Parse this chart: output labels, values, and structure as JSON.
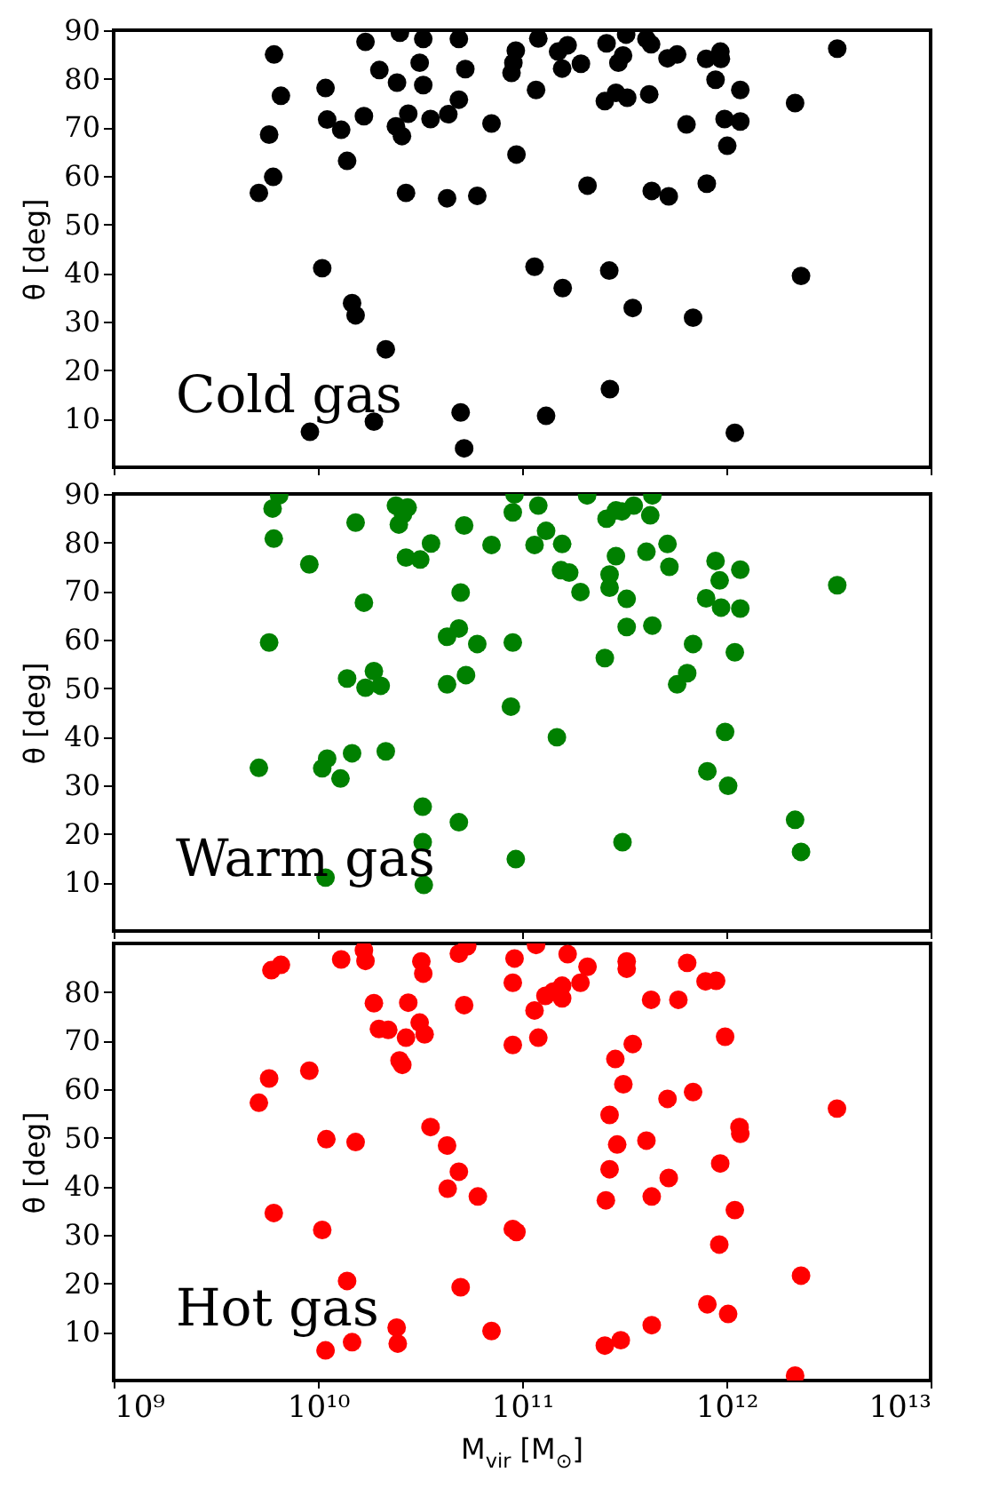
{
  "chart_data": [
    {
      "type": "scatter",
      "ylabel": "θ [deg]",
      "annotations": [
        "Cold gas"
      ],
      "log": "x",
      "marker": "circle",
      "tick_labels": "y",
      "xlim": [
        1000000000.0,
        10000000000000.0
      ],
      "ylim": [
        0,
        90
      ],
      "xticks": [
        {
          "value": 1000000000.0,
          "label": null
        },
        {
          "value": 10000000000.0,
          "label": null
        },
        {
          "value": 100000000000.0,
          "label": null
        },
        {
          "value": 1000000000000.0,
          "label": null
        },
        {
          "value": 10000000000000.0,
          "label": null
        }
      ],
      "yticks": [
        10,
        20,
        30,
        40,
        50,
        60,
        70,
        80,
        90
      ],
      "series": [
        {
          "color": "#000000",
          "x": [
            6100000000.0,
            17100000000.0,
            25200000000.0,
            32800000000.0,
            49000000000.0,
            93100000000.0,
            90600000000.0,
            20000000000.0,
            31500000000.0,
            52700000000.0,
            88700000000.0,
            10900000000.0,
            24400000000.0,
            32800000000.0,
            6590000000.0,
            49000000000.0,
            16800000000.0,
            11100000000.0,
            13000000000.0,
            24100000000.0,
            27700000000.0,
            25800000000.0,
            35600000000.0,
            43500000000.0,
            70800000000.0,
            5770000000.0,
            13900000000.0,
            93800000000.0,
            6040000000.0,
            5140000000.0,
            27000000000.0,
            42900000000.0,
            60300000000.0,
            10500000000.0,
            14700000000.0,
            15300000000.0,
            21500000000.0,
            50000000000.0,
            18800000000.0,
            9140000000.0,
            52000000000.0,
            120000000000.0,
            150000000000.0,
            167000000000.0,
            157000000000.0,
            194000000000.0,
            117000000000.0,
            259000000000.0,
            323000000000.0,
            406000000000.0,
            428000000000.0,
            312000000000.0,
            296000000000.0,
            515000000000.0,
            574000000000.0,
            796000000000.0,
            935000000000.0,
            940000000000.0,
            885000000000.0,
            1170000000000.0,
            254000000000.0,
            288000000000.0,
            327000000000.0,
            419000000000.0,
            2170000000000.0,
            3490000000000.0,
            638000000000.0,
            980000000000.0,
            1170000000000.0,
            1010000000000.0,
            209000000000.0,
            431000000000.0,
            522000000000.0,
            802000000000.0,
            115000000000.0,
            158000000000.0,
            267000000000.0,
            348000000000.0,
            687000000000.0,
            2320000000000.0,
            269000000000.0,
            131000000000.0,
            1100000000000.0
          ],
          "values": [
            85.0,
            87.6,
            89.5,
            88.2,
            88.2,
            85.8,
            83.3,
            81.8,
            83.3,
            82.0,
            81.2,
            78.1,
            79.2,
            78.7,
            76.5,
            75.7,
            72.3,
            71.6,
            69.5,
            70.2,
            72.8,
            68.2,
            71.7,
            72.7,
            70.8,
            68.5,
            63.1,
            64.4,
            59.8,
            56.5,
            56.5,
            55.4,
            55.9,
            41.0,
            33.8,
            31.3,
            24.3,
            11.3,
            9.4,
            7.3,
            3.9,
            88.3,
            85.6,
            86.9,
            82.1,
            83.1,
            77.7,
            87.3,
            89.1,
            88.2,
            87.1,
            84.8,
            83.3,
            84.2,
            85.0,
            84.1,
            85.6,
            84.1,
            79.8,
            77.7,
            75.4,
            77.1,
            76.1,
            76.8,
            75.0,
            86.2,
            70.6,
            71.7,
            71.2,
            66.2,
            58.0,
            56.9,
            55.8,
            58.4,
            41.3,
            36.9,
            40.5,
            32.8,
            30.8,
            39.4,
            16.1,
            10.6,
            7.1
          ]
        }
      ]
    },
    {
      "type": "scatter",
      "ylabel": "θ [deg]",
      "annotations": [
        "Warm gas"
      ],
      "log": "x",
      "marker": "circle",
      "tick_labels": "y",
      "xlim": [
        1000000000.0,
        10000000000000.0
      ],
      "ylim": [
        0,
        90
      ],
      "xticks": [
        {
          "value": 1000000000.0,
          "label": null
        },
        {
          "value": 10000000000.0,
          "label": null
        },
        {
          "value": 100000000000.0,
          "label": null
        },
        {
          "value": 1000000000000.0,
          "label": null
        },
        {
          "value": 10000000000000.0,
          "label": null
        }
      ],
      "yticks": [
        10,
        20,
        30,
        40,
        50,
        60,
        70,
        80,
        90
      ],
      "series": [
        {
          "color": "#008000",
          "x": [
            6000000000.0,
            6460000000.0,
            6080000000.0,
            9080000000.0,
            15300000000.0,
            24100000000.0,
            27500000000.0,
            24900000000.0,
            26100000000.0,
            27000000000.0,
            31700000000.0,
            35800000000.0,
            52000000000.0,
            70800000000.0,
            90000000000.0,
            91800000000.0,
            16800000000.0,
            50000000000.0,
            5770000000.0,
            42900000000.0,
            49000000000.0,
            60300000000.0,
            90000000000.0,
            13900000000.0,
            18800000000.0,
            17100000000.0,
            20300000000.0,
            42900000000.0,
            53100000000.0,
            88100000000.0,
            5140000000.0,
            10500000000.0,
            11100000000.0,
            14700000000.0,
            21500000000.0,
            12900000000.0,
            32600000000.0,
            49000000000.0,
            32600000000.0,
            93100000000.0,
            10900000000.0,
            33000000000.0,
            120000000000.0,
            131000000000.0,
            115000000000.0,
            157000000000.0,
            155000000000.0,
            170000000000.0,
            193000000000.0,
            208000000000.0,
            259000000000.0,
            288000000000.0,
            308000000000.0,
            352000000000.0,
            424000000000.0,
            434000000000.0,
            288000000000.0,
            268000000000.0,
            268000000000.0,
            325000000000.0,
            406000000000.0,
            515000000000.0,
            526000000000.0,
            325000000000.0,
            434000000000.0,
            254000000000.0,
            687000000000.0,
            643000000000.0,
            574000000000.0,
            885000000000.0,
            927000000000.0,
            1170000000000.0,
            796000000000.0,
            942000000000.0,
            1170000000000.0,
            1100000000000.0,
            3490000000000.0,
            148000000000.0,
            986000000000.0,
            807000000000.0,
            1020000000000.0,
            2170000000000.0,
            2320000000000.0,
            310000000000.0
          ],
          "values": [
            87.0,
            89.7,
            80.8,
            75.5,
            84.1,
            87.6,
            87.2,
            83.7,
            85.8,
            76.9,
            76.5,
            79.8,
            83.5,
            79.5,
            86.2,
            89.9,
            67.6,
            69.7,
            59.4,
            60.6,
            62.3,
            59.1,
            59.4,
            52.0,
            53.5,
            50.1,
            50.5,
            50.8,
            52.7,
            46.2,
            33.6,
            33.5,
            35.5,
            36.6,
            37.0,
            31.4,
            25.6,
            22.4,
            18.3,
            14.8,
            11.0,
            9.5,
            87.6,
            82.4,
            79.5,
            79.7,
            74.3,
            73.8,
            69.8,
            89.7,
            84.9,
            86.6,
            86.4,
            87.6,
            85.6,
            89.7,
            77.2,
            73.4,
            70.7,
            68.4,
            78.1,
            79.7,
            75.0,
            62.6,
            62.9,
            56.2,
            59.1,
            53.1,
            50.8,
            76.2,
            72.2,
            74.4,
            68.5,
            66.6,
            66.4,
            57.4,
            71.2,
            39.9,
            41.0,
            32.9,
            29.9,
            22.9,
            16.3,
            18.3
          ]
        }
      ]
    },
    {
      "type": "scatter",
      "ylabel": "θ [deg]",
      "xlabel": "M$_{vir}$ [M$_{⊙}$]",
      "annotations": [
        "Hot gas"
      ],
      "log": "x",
      "marker": "circle",
      "xlim": [
        1000000000.0,
        10000000000000.0
      ],
      "ylim": [
        0,
        90
      ],
      "xticks": [
        {
          "value": 1000000000.0,
          "label": "10⁹"
        },
        {
          "value": 10000000000.0,
          "label": "10¹⁰"
        },
        {
          "value": 100000000000.0,
          "label": "10¹¹"
        },
        {
          "value": 1000000000000.0,
          "label": "10¹²"
        },
        {
          "value": 10000000000000.0,
          "label": "10¹³"
        }
      ],
      "yticks": [
        10,
        20,
        30,
        40,
        50,
        60,
        70,
        80
      ],
      "series": [
        {
          "color": "#ff0000",
          "x": [
            5920000000.0,
            6590000000.0,
            13000000000.0,
            16800000000.0,
            17100000000.0,
            32100000000.0,
            32800000000.0,
            49000000000.0,
            53800000000.0,
            91800000000.0,
            90000000000.0,
            18800000000.0,
            27700000000.0,
            52000000000.0,
            19900000000.0,
            22100000000.0,
            31500000000.0,
            27000000000.0,
            33300000000.0,
            25100000000.0,
            25900000000.0,
            90000000000.0,
            5770000000.0,
            9080000000.0,
            5140000000.0,
            11000000000.0,
            15300000000.0,
            35600000000.0,
            42900000000.0,
            49000000000.0,
            43200000000.0,
            60700000000.0,
            6080000000.0,
            10500000000.0,
            90000000000.0,
            93800000000.0,
            13900000000.0,
            50000000000.0,
            24300000000.0,
            70800000000.0,
            14700000000.0,
            24600000000.0,
            10900000000.0,
            117000000000.0,
            167000000000.0,
            209000000000.0,
            193000000000.0,
            130000000000.0,
            142000000000.0,
            157000000000.0,
            157000000000.0,
            115000000000.0,
            120000000000.0,
            325000000000.0,
            325000000000.0,
            643000000000.0,
            428000000000.0,
            582000000000.0,
            791000000000.0,
            891000000000.0,
            986000000000.0,
            286000000000.0,
            348000000000.0,
            313000000000.0,
            515000000000.0,
            687000000000.0,
            268000000000.0,
            292000000000.0,
            406000000000.0,
            1160000000000.0,
            1170000000000.0,
            3480000000000.0,
            268000000000.0,
            257000000000.0,
            431000000000.0,
            522000000000.0,
            933000000000.0,
            1100000000000.0,
            923000000000.0,
            2320000000000.0,
            807000000000.0,
            1020000000000.0,
            431000000000.0,
            304000000000.0,
            254000000000.0,
            2170000000000.0
          ],
          "values": [
            84.5,
            85.6,
            86.7,
            88.6,
            86.4,
            86.3,
            83.8,
            87.9,
            89.4,
            86.9,
            81.9,
            77.7,
            77.8,
            77.3,
            72.4,
            72.2,
            73.7,
            70.6,
            71.3,
            65.9,
            65.0,
            69.1,
            62.2,
            63.8,
            57.2,
            49.7,
            49.1,
            52.2,
            48.4,
            43.0,
            39.5,
            37.9,
            34.5,
            31.0,
            31.2,
            30.6,
            20.5,
            19.2,
            10.9,
            10.2,
            7.9,
            7.6,
            6.2,
            89.7,
            87.8,
            85.2,
            81.9,
            79.2,
            80.1,
            81.3,
            78.7,
            76.2,
            70.6,
            86.3,
            84.8,
            86.0,
            78.4,
            78.4,
            82.2,
            82.3,
            70.8,
            66.2,
            69.3,
            61.0,
            58.0,
            59.4,
            54.7,
            48.6,
            49.4,
            52.2,
            50.8,
            56.0,
            43.5,
            37.1,
            37.9,
            41.7,
            44.7,
            35.1,
            28.0,
            21.6,
            15.7,
            13.7,
            11.4,
            8.3,
            7.2,
            1.0
          ]
        }
      ]
    }
  ]
}
